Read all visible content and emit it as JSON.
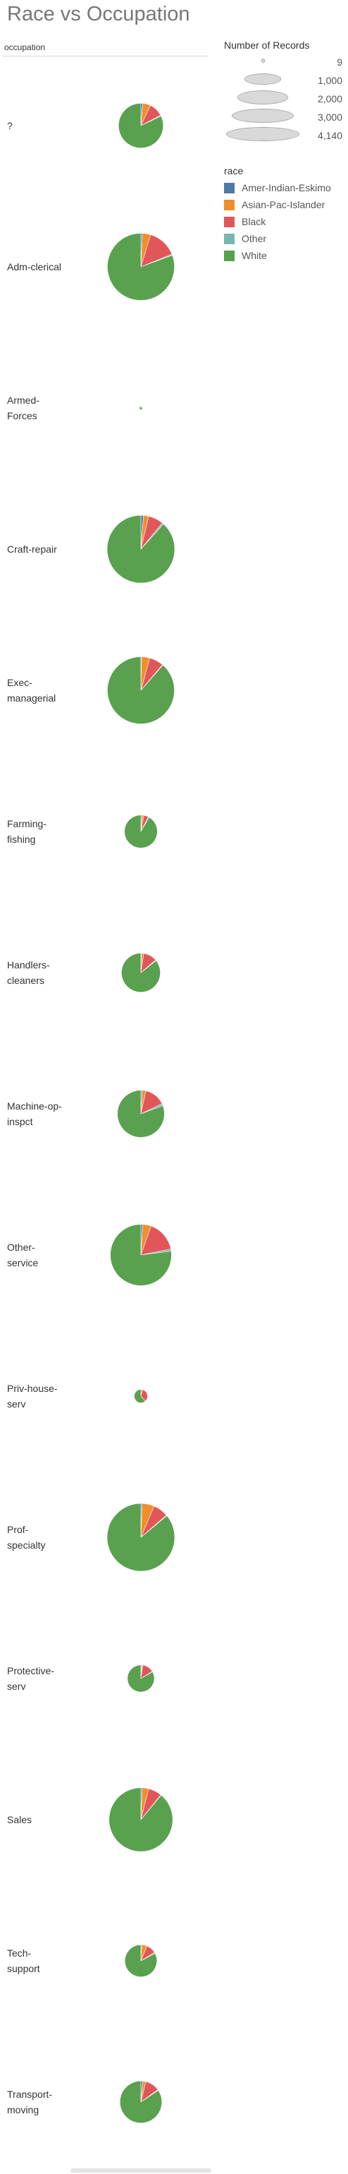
{
  "chart_data": {
    "type": "pie",
    "title": "Race vs Occupation",
    "row_header": "occupation",
    "size_legend": {
      "title": "Number of Records",
      "entries": [
        9,
        1000,
        2000,
        3000,
        4140
      ],
      "entry_labels": [
        "9",
        "1,000",
        "2,000",
        "3,000",
        "4,140"
      ]
    },
    "color_legend": {
      "title": "race",
      "entries": [
        {
          "name": "Amer-Indian-Eskimo",
          "color": "#4e79a7"
        },
        {
          "name": "Asian-Pac-Islander",
          "color": "#f28e2b"
        },
        {
          "name": "Black",
          "color": "#e15759"
        },
        {
          "name": "Other",
          "color": "#76b7b2"
        },
        {
          "name": "White",
          "color": "#59a14f"
        }
      ]
    },
    "categories": [
      "?",
      "Adm-clerical",
      "Armed-Forces",
      "Craft-repair",
      "Exec-managerial",
      "Farming-fishing",
      "Handlers-cleaners",
      "Machine-op-inspct",
      "Other-service",
      "Priv-house-serv",
      "Prof-specialty",
      "Protective-serv",
      "Sales",
      "Tech-support",
      "Transport-moving"
    ],
    "category_labels": [
      "?",
      "Adm-clerical",
      "Armed-\nForces",
      "Craft-repair",
      "Exec-\nmanagerial",
      "Farming-\nfishing",
      "Handlers-\ncleaners",
      "Machine-op-\ninspct",
      "Other-\nservice",
      "Priv-house-\nserv",
      "Prof-\nspecialty",
      "Protective-\nserv",
      "Sales",
      "Tech-\nsupport",
      "Transport-\nmoving"
    ],
    "series": [
      {
        "name": "Amer-Indian-Eskimo",
        "values": [
          25,
          31,
          0,
          50,
          13,
          10,
          8,
          19,
          33,
          0,
          25,
          6,
          26,
          8,
          23
        ]
      },
      {
        "name": "Asian-Pac-Islander",
        "values": [
          102,
          160,
          0,
          103,
          161,
          19,
          25,
          50,
          150,
          7,
          240,
          10,
          120,
          50,
          37
        ]
      },
      {
        "name": "Black",
        "values": [
          186,
          580,
          1,
          300,
          280,
          45,
          155,
          290,
          560,
          55,
          300,
          90,
          250,
          93,
          180
        ]
      },
      {
        "name": "Other",
        "values": [
          12,
          20,
          0,
          30,
          10,
          9,
          10,
          30,
          40,
          0,
          15,
          3,
          8,
          10,
          10
        ]
      },
      {
        "name": "White",
        "values": [
          1484,
          3279,
          9,
          3654,
          3598,
          896,
          1174,
          1612,
          2610,
          100,
          3560,
          546,
          3270,
          767,
          1343
        ]
      }
    ]
  }
}
